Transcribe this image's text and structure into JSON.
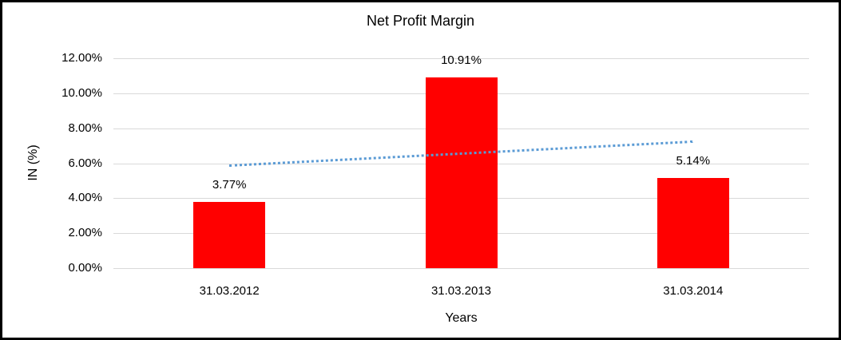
{
  "chart_data": {
    "type": "bar",
    "title": "Net Profit Margin",
    "xlabel": "Years",
    "ylabel": "IN (%)",
    "categories": [
      "31.03.2012",
      "31.03.2013",
      "31.03.2014"
    ],
    "values": [
      3.77,
      10.91,
      5.14
    ],
    "data_labels": [
      "3.77%",
      "10.91%",
      "5.14%"
    ],
    "y_tick_values": [
      0,
      2,
      4,
      6,
      8,
      10,
      12
    ],
    "y_tick_labels": [
      "0.00%",
      "2.00%",
      "4.00%",
      "6.00%",
      "8.00%",
      "10.00%",
      "12.00%"
    ],
    "ylim": [
      0,
      12
    ],
    "grid": true,
    "legend": "none",
    "bar_color": "#ff0000",
    "gridline_color": "#d9d9d9",
    "trendline": {
      "type": "linear",
      "style": "dotted",
      "color": "#5b9bd5",
      "start_value": 5.92,
      "end_value": 7.29
    }
  }
}
